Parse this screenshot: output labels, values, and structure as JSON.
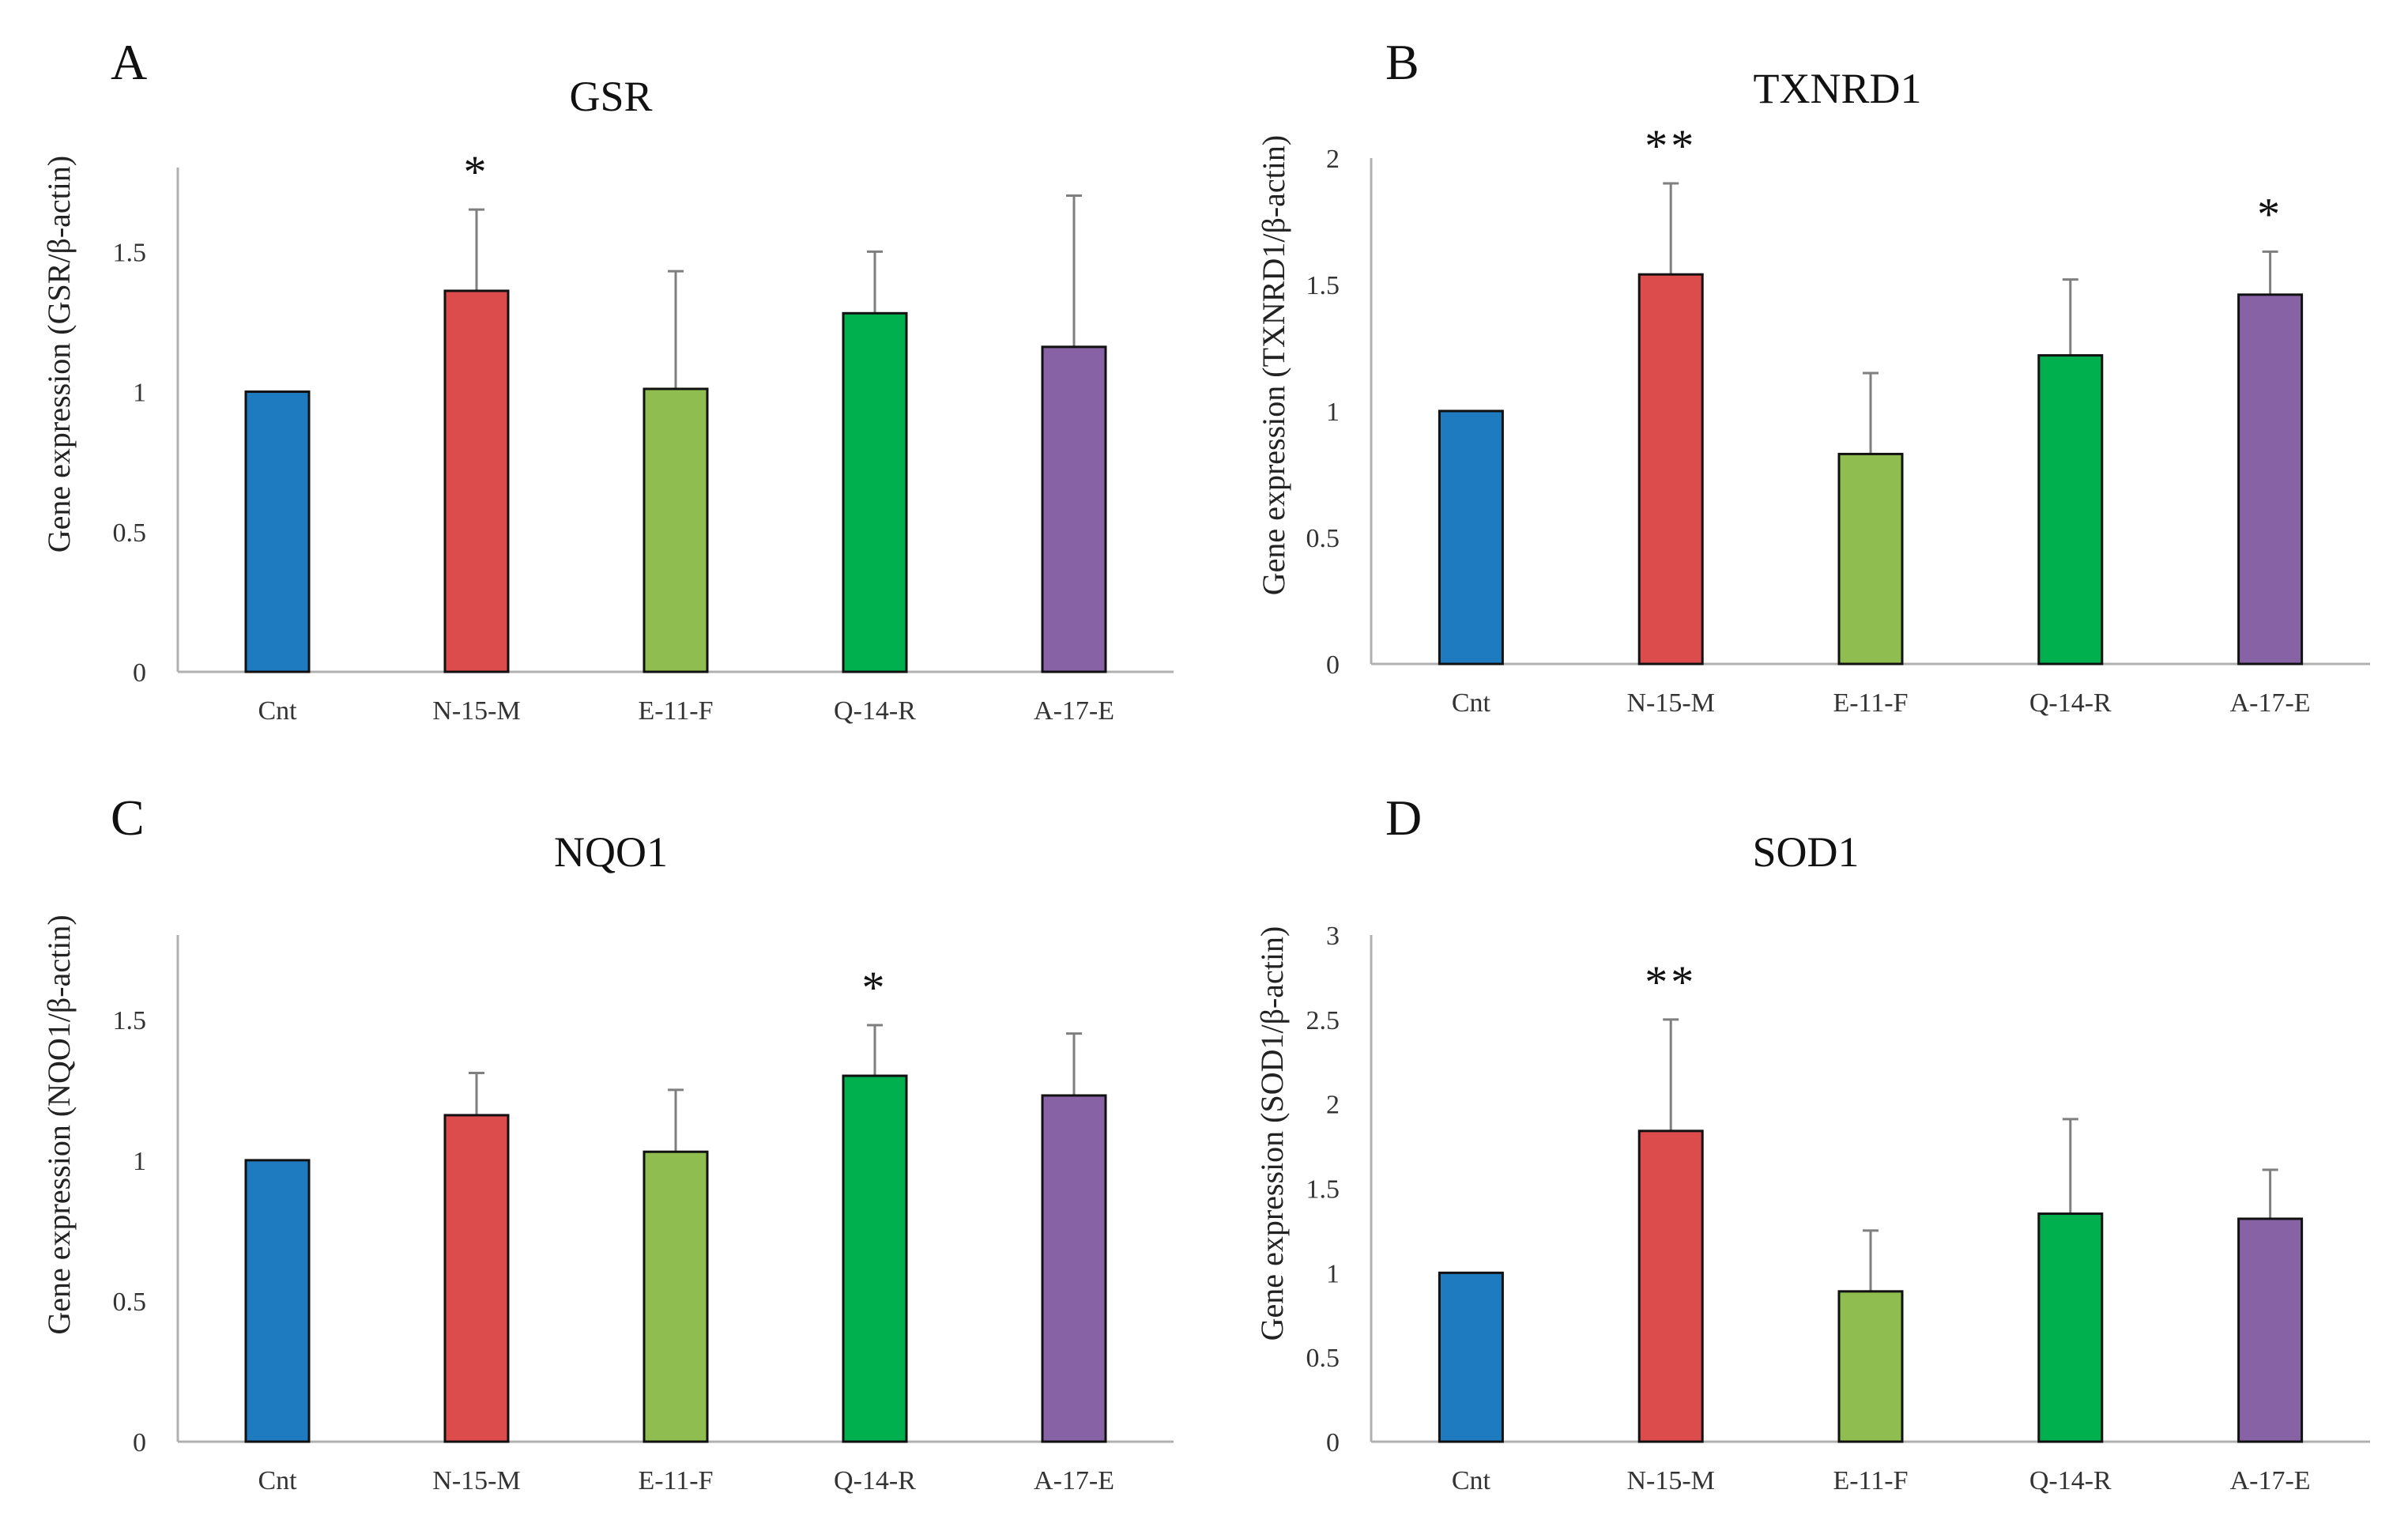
{
  "colors": {
    "Cnt": "#1f7bbf",
    "N-15-M": "#dd4c4c",
    "E-11-F": "#8fbd4f",
    "Q-14-R": "#00b04f",
    "A-17-E": "#8763a6"
  },
  "chart_data": [
    {
      "type": "bar",
      "panel": "A",
      "title": "GSR",
      "xlabel": "",
      "ylabel": "Gene expression (GSR/β-actin)",
      "categories": [
        "Cnt",
        "N-15-M",
        "E-11-F",
        "Q-14-R",
        "A-17-E"
      ],
      "values": [
        1.0,
        1.36,
        1.01,
        1.28,
        1.16
      ],
      "errors": [
        0.0,
        0.29,
        0.42,
        0.22,
        0.54
      ],
      "significance": [
        "",
        "*",
        "",
        "",
        ""
      ],
      "yticks": [
        0,
        0.5,
        1,
        1.5
      ],
      "ytick_labels": [
        "0",
        "0.5",
        "1",
        "1.5"
      ],
      "ylim": [
        0,
        1.8
      ]
    },
    {
      "type": "bar",
      "panel": "B",
      "title": "TXNRD1",
      "xlabel": "",
      "ylabel": "Gene expression (TXNRD1/β-actin)",
      "categories": [
        "Cnt",
        "N-15-M",
        "E-11-F",
        "Q-14-R",
        "A-17-E"
      ],
      "values": [
        1.0,
        1.54,
        0.83,
        1.22,
        1.46
      ],
      "errors": [
        0.0,
        0.36,
        0.32,
        0.3,
        0.17
      ],
      "significance": [
        "",
        "**",
        "",
        "",
        "*"
      ],
      "yticks": [
        0,
        0.5,
        1,
        1.5,
        2
      ],
      "ytick_labels": [
        "0",
        "0.5",
        "1",
        "1.5",
        "2"
      ],
      "ylim": [
        0,
        2
      ]
    },
    {
      "type": "bar",
      "panel": "C",
      "title": "NQO1",
      "xlabel": "",
      "ylabel": "Gene expression (NQO1/β-actin)",
      "categories": [
        "Cnt",
        "N-15-M",
        "E-11-F",
        "Q-14-R",
        "A-17-E"
      ],
      "values": [
        1.0,
        1.16,
        1.03,
        1.3,
        1.23
      ],
      "errors": [
        0.0,
        0.15,
        0.22,
        0.18,
        0.22
      ],
      "significance": [
        "",
        "",
        "",
        "*",
        ""
      ],
      "yticks": [
        0,
        0.5,
        1,
        1.5
      ],
      "ytick_labels": [
        "0",
        "0.5",
        "1",
        "1.5"
      ],
      "ylim": [
        0,
        1.8
      ]
    },
    {
      "type": "bar",
      "panel": "D",
      "title": "SOD1",
      "xlabel": "",
      "ylabel": "Gene expression (SOD1/β-actin)",
      "categories": [
        "Cnt",
        "N-15-M",
        "E-11-F",
        "Q-14-R",
        "A-17-E"
      ],
      "values": [
        1.0,
        1.84,
        0.89,
        1.35,
        1.32
      ],
      "errors": [
        0.0,
        0.66,
        0.36,
        0.56,
        0.29
      ],
      "significance": [
        "",
        "**",
        "",
        "",
        ""
      ],
      "yticks": [
        0,
        0.5,
        1,
        1.5,
        2,
        2.5,
        3
      ],
      "ytick_labels": [
        "0",
        "0.5",
        "1",
        "1.5",
        "2",
        "2.5",
        "3"
      ],
      "ylim": [
        0,
        3
      ]
    }
  ]
}
